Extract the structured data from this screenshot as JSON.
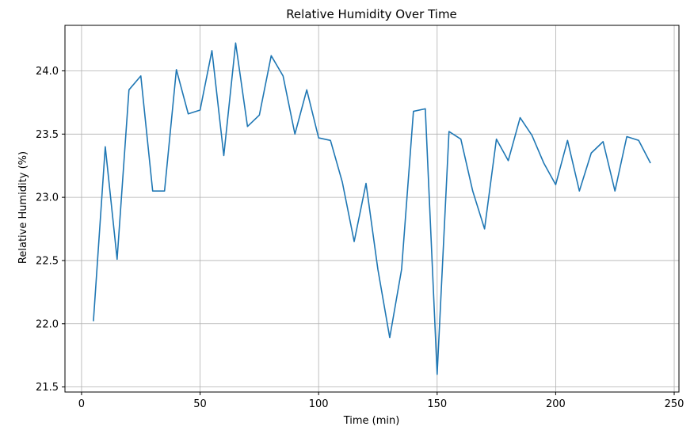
{
  "chart_data": {
    "type": "line",
    "title": "Relative Humidity Over Time",
    "xlabel": "Time (min)",
    "ylabel": "Relative Humidity (%)",
    "xlim": [
      -7,
      252
    ],
    "ylim": [
      21.46,
      24.36
    ],
    "xticks": [
      0,
      50,
      100,
      150,
      200,
      250
    ],
    "yticks": [
      21.5,
      22.0,
      22.5,
      23.0,
      23.5,
      24.0
    ],
    "xtick_labels": [
      "0",
      "50",
      "100",
      "150",
      "200",
      "250"
    ],
    "ytick_labels": [
      "21.5",
      "22.0",
      "22.5",
      "23.0",
      "23.5",
      "24.0"
    ],
    "grid": true,
    "line_color": "#1f77b4",
    "grid_color": "#b0b0b0",
    "series": [
      {
        "x": [
          5,
          10,
          15,
          20,
          25,
          30,
          35,
          40,
          45,
          50,
          55,
          60,
          65,
          70,
          75,
          80,
          85,
          90,
          95,
          100,
          105,
          110,
          115,
          120,
          125,
          130,
          135,
          140,
          145,
          150,
          155,
          160,
          165,
          170,
          175,
          180,
          185,
          190,
          195,
          200,
          205,
          210,
          215,
          220,
          225,
          230,
          235,
          240
        ],
        "values": [
          22.02,
          23.4,
          22.51,
          23.85,
          23.96,
          23.05,
          23.05,
          24.01,
          23.66,
          23.69,
          24.16,
          23.33,
          24.22,
          23.56,
          23.65,
          24.12,
          23.96,
          23.5,
          23.85,
          23.47,
          23.45,
          23.12,
          22.65,
          23.11,
          22.43,
          21.89,
          22.43,
          23.68,
          23.7,
          21.6,
          23.52,
          23.46,
          23.05,
          22.75,
          23.46,
          23.29,
          23.63,
          23.49,
          23.27,
          23.1,
          23.45,
          23.05,
          23.35,
          23.44,
          23.05,
          23.48,
          23.45,
          23.27
        ]
      }
    ]
  }
}
